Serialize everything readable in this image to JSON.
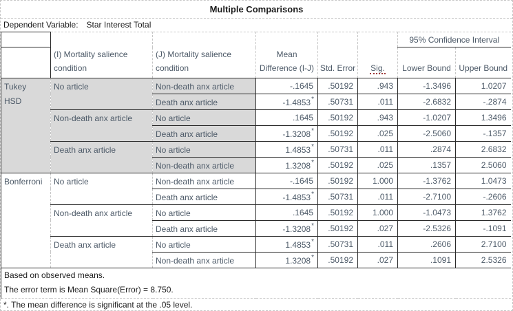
{
  "title": "Multiple Comparisons",
  "dependent_variable": {
    "label": "Dependent Variable:",
    "value": "Star Interest Total"
  },
  "columns": {
    "i_label": "(I) Mortality salience condition",
    "j_label": "(J) Mortality salience condition",
    "mean_diff": "Mean Difference (I-J)",
    "std_error": "Std. Error",
    "sig": "Sig.",
    "ci_header": "95% Confidence Interval",
    "lower": "Lower Bound",
    "upper": "Upper Bound"
  },
  "significance_marker": "*",
  "sections": [
    {
      "method": "Tukey HSD",
      "shaded": true,
      "groups": [
        {
          "i": "No article",
          "rows": [
            {
              "j": "Non-death anx article",
              "mean": "-.1645",
              "star": false,
              "se": ".50192",
              "sig": ".943",
              "lower": "-1.3496",
              "upper": "1.0207"
            },
            {
              "j": "Death anx article",
              "mean": "-1.4853",
              "star": true,
              "se": ".50731",
              "sig": ".011",
              "lower": "-2.6832",
              "upper": "-.2874"
            }
          ]
        },
        {
          "i": "Non-death anx article",
          "rows": [
            {
              "j": "No article",
              "mean": ".1645",
              "star": false,
              "se": ".50192",
              "sig": ".943",
              "lower": "-1.0207",
              "upper": "1.3496"
            },
            {
              "j": "Death anx article",
              "mean": "-1.3208",
              "star": true,
              "se": ".50192",
              "sig": ".025",
              "lower": "-2.5060",
              "upper": "-.1357"
            }
          ]
        },
        {
          "i": "Death anx article",
          "rows": [
            {
              "j": "No article",
              "mean": "1.4853",
              "star": true,
              "se": ".50731",
              "sig": ".011",
              "lower": ".2874",
              "upper": "2.6832"
            },
            {
              "j": "Non-death anx article",
              "mean": "1.3208",
              "star": true,
              "se": ".50192",
              "sig": ".025",
              "lower": ".1357",
              "upper": "2.5060"
            }
          ]
        }
      ]
    },
    {
      "method": "Bonferroni",
      "shaded": false,
      "groups": [
        {
          "i": "No article",
          "rows": [
            {
              "j": "Non-death anx article",
              "mean": "-.1645",
              "star": false,
              "se": ".50192",
              "sig": "1.000",
              "lower": "-1.3762",
              "upper": "1.0473"
            },
            {
              "j": "Death anx article",
              "mean": "-1.4853",
              "star": true,
              "se": ".50731",
              "sig": ".011",
              "lower": "-2.7100",
              "upper": "-.2606"
            }
          ]
        },
        {
          "i": "Non-death anx article",
          "rows": [
            {
              "j": "No article",
              "mean": ".1645",
              "star": false,
              "se": ".50192",
              "sig": "1.000",
              "lower": "-1.0473",
              "upper": "1.3762"
            },
            {
              "j": "Death anx article",
              "mean": "-1.3208",
              "star": true,
              "se": ".50192",
              "sig": ".027",
              "lower": "-2.5326",
              "upper": "-.1091"
            }
          ]
        },
        {
          "i": "Death anx article",
          "rows": [
            {
              "j": "No article",
              "mean": "1.4853",
              "star": true,
              "se": ".50731",
              "sig": ".011",
              "lower": ".2606",
              "upper": "2.7100"
            },
            {
              "j": "Non-death anx article",
              "mean": "1.3208",
              "star": true,
              "se": ".50192",
              "sig": ".027",
              "lower": ".1091",
              "upper": "2.5326"
            }
          ]
        }
      ]
    }
  ],
  "footnotes": [
    "Based on observed means.",
    " The error term is Mean Square(Error) = 8.750."
  ],
  "sig_footnote": "*. The mean difference is significant at the .05 level.",
  "colors": {
    "shaded_cell": "#d9d9d9",
    "table_text": "#4d5a68",
    "heading_text": "#1c1c1c",
    "solid_border": "#2a2a2a",
    "dashed_border": "#c6c6c6",
    "sig_underline": "#9e3a3a"
  }
}
